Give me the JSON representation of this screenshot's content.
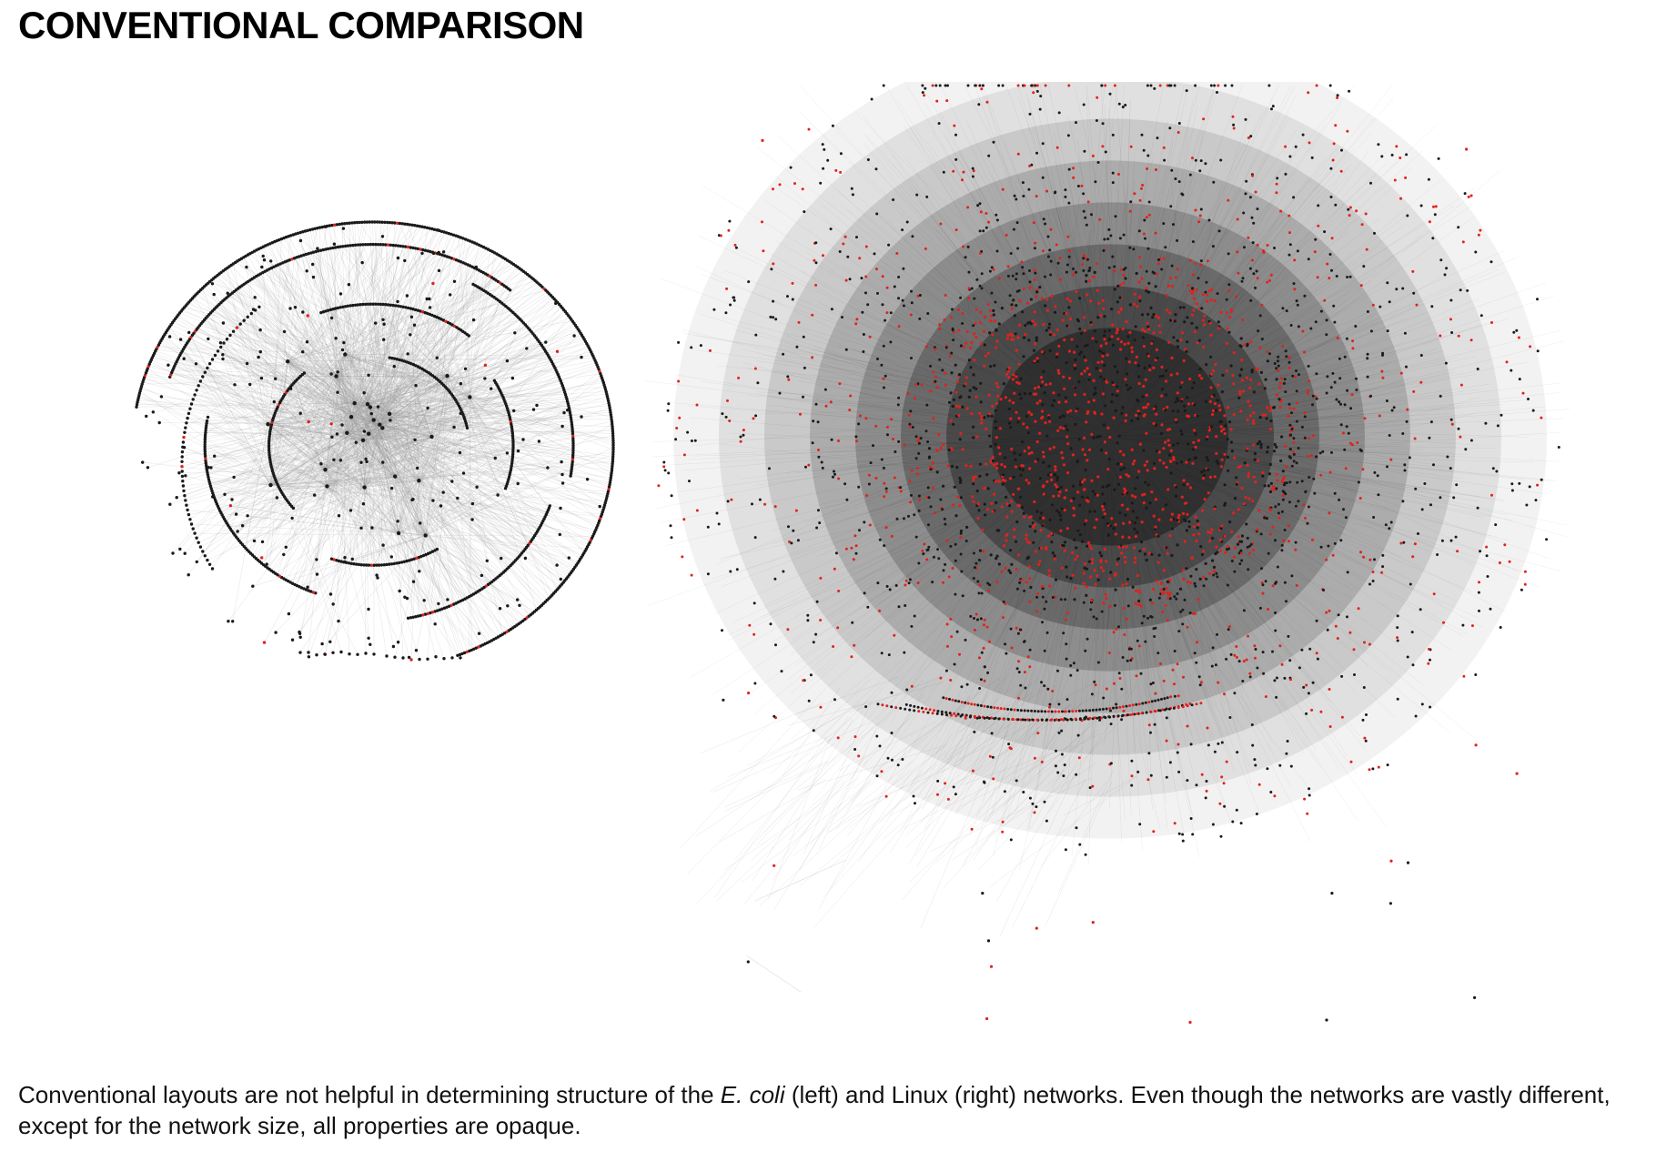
{
  "title": "CONVENTIONAL COMPARISON",
  "caption": {
    "before_species": "Conventional layouts are not helpful in determining structure of the ",
    "species": "E. coli",
    "after_species": " (left) and Linux (right) networks. Even though the networks are vastly different, except for the network size, all properties are opaque."
  },
  "networks": [
    {
      "name": "E. coli",
      "position_label": "left"
    },
    {
      "name": "Linux",
      "position_label": "right"
    }
  ],
  "colors": {
    "node_default": "#1a1a1a",
    "node_highlight": "#e0221e",
    "edge": "#9a9a9a",
    "background": "#ffffff",
    "text": "#000000"
  }
}
